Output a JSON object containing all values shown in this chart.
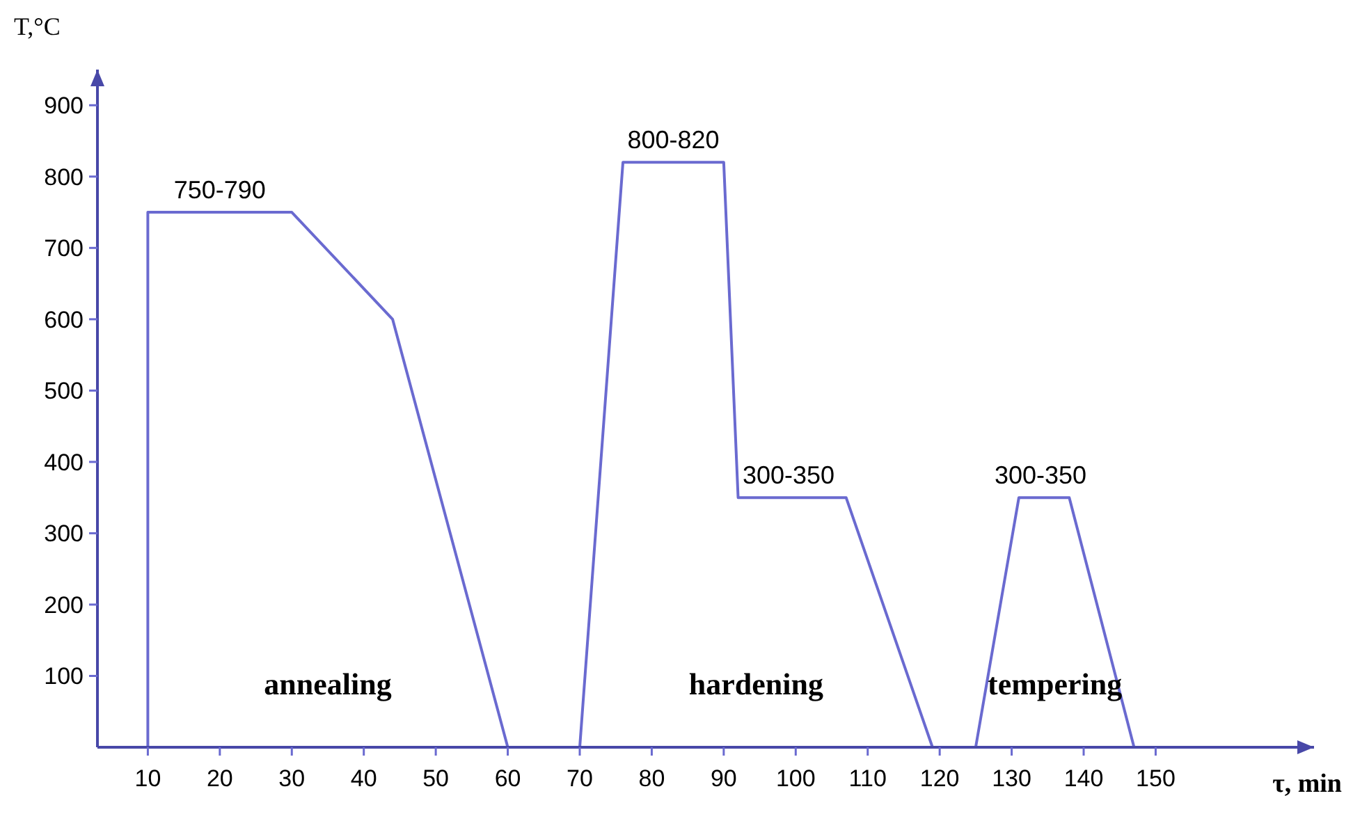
{
  "chart_data": {
    "type": "line",
    "xlabel": "τ, min",
    "ylabel": "T,°C",
    "xlim": [
      3,
      172
    ],
    "ylim": [
      0,
      950
    ],
    "xticks": [
      10,
      20,
      30,
      40,
      50,
      60,
      70,
      80,
      90,
      100,
      110,
      120,
      130,
      140,
      150
    ],
    "yticks": [
      100,
      200,
      300,
      400,
      500,
      600,
      700,
      800,
      900
    ],
    "grid": false,
    "marker": "none",
    "line_style": "solid",
    "series": [
      {
        "color": "#6a6ad0",
        "x": [
          10,
          10,
          30,
          44,
          60,
          null,
          70,
          76,
          90,
          92,
          107,
          119,
          null,
          125,
          131,
          138,
          147
        ],
        "values": [
          0,
          750,
          750,
          600,
          0,
          null,
          0,
          820,
          820,
          350,
          350,
          0,
          null,
          0,
          350,
          350,
          0
        ]
      }
    ],
    "annotations": [
      {
        "text": "750-790",
        "x": 20,
        "y": 750
      },
      {
        "text": "800-820",
        "x": 83,
        "y": 820
      },
      {
        "text": "300-350",
        "x": 99,
        "y": 350
      },
      {
        "text": "300-350",
        "x": 134,
        "y": 350
      },
      "annealing",
      "hardening",
      "tempering"
    ]
  }
}
